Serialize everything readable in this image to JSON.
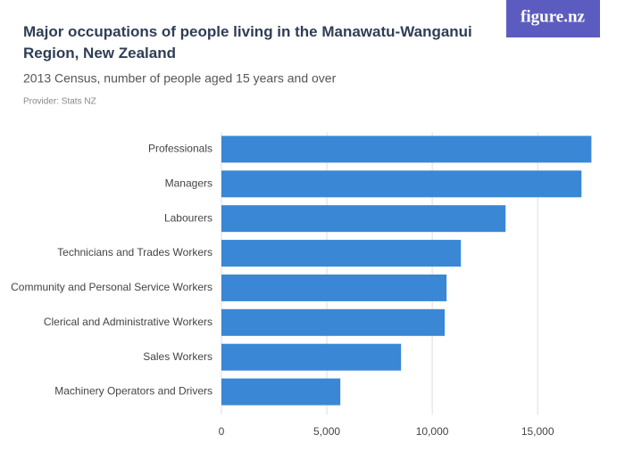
{
  "chart_data": {
    "type": "bar",
    "orientation": "horizontal",
    "title": "Major occupations of people living in the Manawatu-Wanganui Region, New Zealand",
    "subtitle": "2013 Census, number of people aged 15 years and over",
    "provider": "Provider: Stats NZ",
    "logo": "figure.nz",
    "categories": [
      "Professionals",
      "Managers",
      "Labourers",
      "Technicians and Trades Workers",
      "Community and Personal Service Workers",
      "Clerical and Administrative Workers",
      "Sales Workers",
      "Machinery Operators and Drivers"
    ],
    "values": [
      17550,
      17080,
      13480,
      11360,
      10680,
      10590,
      8520,
      5640
    ],
    "color": "#3a87d6",
    "xlim": [
      0,
      18000
    ],
    "xticks": [
      0,
      {
        "value": 5000,
        "label": "5,000"
      },
      {
        "value": 10000,
        "label": "10,000"
      },
      {
        "value": 15000,
        "label": "15,000"
      }
    ],
    "grid": true
  }
}
